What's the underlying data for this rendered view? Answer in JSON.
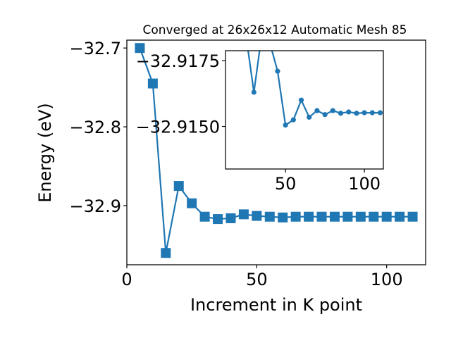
{
  "chart_data": [
    {
      "type": "line",
      "role": "main",
      "title": "Converged at 26x26x12 Automatic Mesh 85",
      "xlabel": "Increment in K point",
      "ylabel": "Energy (eV)",
      "xlim": [
        0,
        115
      ],
      "ylim": [
        -32.975,
        -32.69
      ],
      "xticks": [
        0,
        50,
        100
      ],
      "xtick_labels": [
        "0",
        "50",
        "100"
      ],
      "yticks": [
        -32.7,
        -32.8,
        -32.9
      ],
      "ytick_labels": [
        "−32.7",
        "−32.8",
        "−32.9"
      ],
      "marker": "square",
      "color": "#1f77b4",
      "grid": false,
      "legend": "none",
      "x": [
        5,
        10,
        15,
        20,
        25,
        30,
        35,
        40,
        45,
        50,
        55,
        60,
        65,
        70,
        75,
        80,
        85,
        90,
        95,
        100,
        105,
        110
      ],
      "y": [
        -32.7,
        -32.745,
        -32.96,
        -32.875,
        -32.897,
        -32.914,
        -32.917,
        -32.916,
        -32.911,
        -32.913,
        -32.914,
        -32.915,
        -32.914,
        -32.914,
        -32.914,
        -32.914,
        -32.914,
        -32.914,
        -32.914,
        -32.914,
        -32.914,
        -32.914
      ]
    },
    {
      "type": "line",
      "role": "inset",
      "title": "",
      "xlabel": "",
      "ylabel": "",
      "xlim": [
        12,
        112
      ],
      "ylim": [
        -32.91338,
        -32.91788
      ],
      "xticks": [
        50,
        100
      ],
      "xtick_labels": [
        "50",
        "100"
      ],
      "yticks": [
        -32.9175,
        -32.915
      ],
      "ytick_labels": [
        "−32.9175",
        "−32.9150"
      ],
      "marker": "circle",
      "color": "#1f77b4",
      "grid": false,
      "legend": "none",
      "x": [
        25,
        30,
        35,
        40,
        45,
        50,
        55,
        60,
        65,
        70,
        75,
        80,
        85,
        90,
        95,
        100,
        105,
        110
      ],
      "y": [
        -32.91845,
        -32.9163,
        -32.9185,
        -32.9182,
        -32.9171,
        -32.91505,
        -32.91525,
        -32.916,
        -32.91535,
        -32.9156,
        -32.91545,
        -32.9156,
        -32.9155,
        -32.91555,
        -32.9155,
        -32.91552,
        -32.91552,
        -32.91552
      ]
    }
  ]
}
